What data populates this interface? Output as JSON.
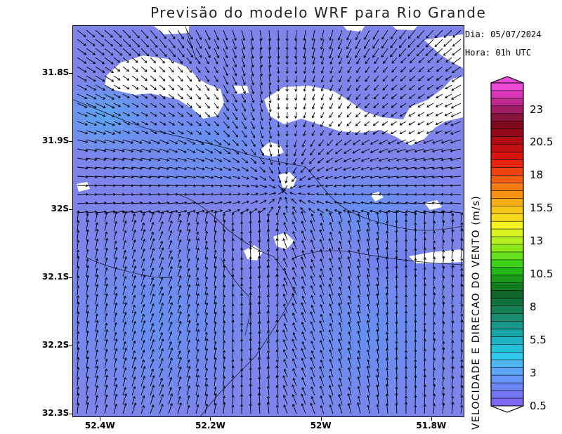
{
  "title": "Previsão do modelo WRF para Rio Grande",
  "info": {
    "date": "Dia: 05/07/2024",
    "time": "Hora: 01h UTC"
  },
  "map": {
    "latitude_labels": [
      {
        "label": "31.8S",
        "lat": -31.8
      },
      {
        "label": "31.9S",
        "lat": -31.9
      },
      {
        "label": "32S",
        "lat": -32.0
      },
      {
        "label": "32.1S",
        "lat": -32.1
      },
      {
        "label": "32.2S",
        "lat": -32.2
      },
      {
        "label": "32.3S",
        "lat": -32.3
      }
    ],
    "longitude_labels": [
      {
        "label": "52.4W",
        "lon": -52.4
      },
      {
        "label": "52.2W",
        "lon": -52.2
      },
      {
        "label": "52W",
        "lon": -52.0
      },
      {
        "label": "51.8W",
        "lon": -51.8
      }
    ],
    "lat_range": [
      -32.305,
      -31.73
    ],
    "lon_range": [
      -52.45,
      -51.74
    ],
    "background_color": "#7e84ea",
    "land_color": "#ffffff",
    "vector_color": "#000000"
  },
  "colorbar": {
    "title": "VELOCIDADE E DIRECAO DO VENTO (m/s)",
    "labels": [
      "23",
      "20.5",
      "18",
      "15.5",
      "13",
      "10.5",
      "8",
      "5.5",
      "3",
      "0.5"
    ],
    "range": [
      0.5,
      25
    ],
    "colors": [
      "#7b68ee",
      "#7477f2",
      "#6d86f5",
      "#6595f6",
      "#5ea4f5",
      "#4eb6f0",
      "#2fc8eb",
      "#25bfd8",
      "#1fb2c0",
      "#1aa5a5",
      "#18988a",
      "#168b6f",
      "#147e55",
      "#12713e",
      "#106428",
      "#127a1c",
      "#1a9a18",
      "#22b818",
      "#3fd21a",
      "#66e01c",
      "#8ee81e",
      "#b5ef1f",
      "#d8f31f",
      "#f5f31f",
      "#f7dc1c",
      "#f8c519",
      "#f8ad17",
      "#f69314",
      "#f47a12",
      "#f05f10",
      "#ec430e",
      "#e6250d",
      "#d8140e",
      "#c40f12",
      "#ad0c15",
      "#950a18",
      "#7d081b",
      "#86133a",
      "#a11d63",
      "#bd2a8e",
      "#d838b8",
      "#ea49d6"
    ]
  }
}
